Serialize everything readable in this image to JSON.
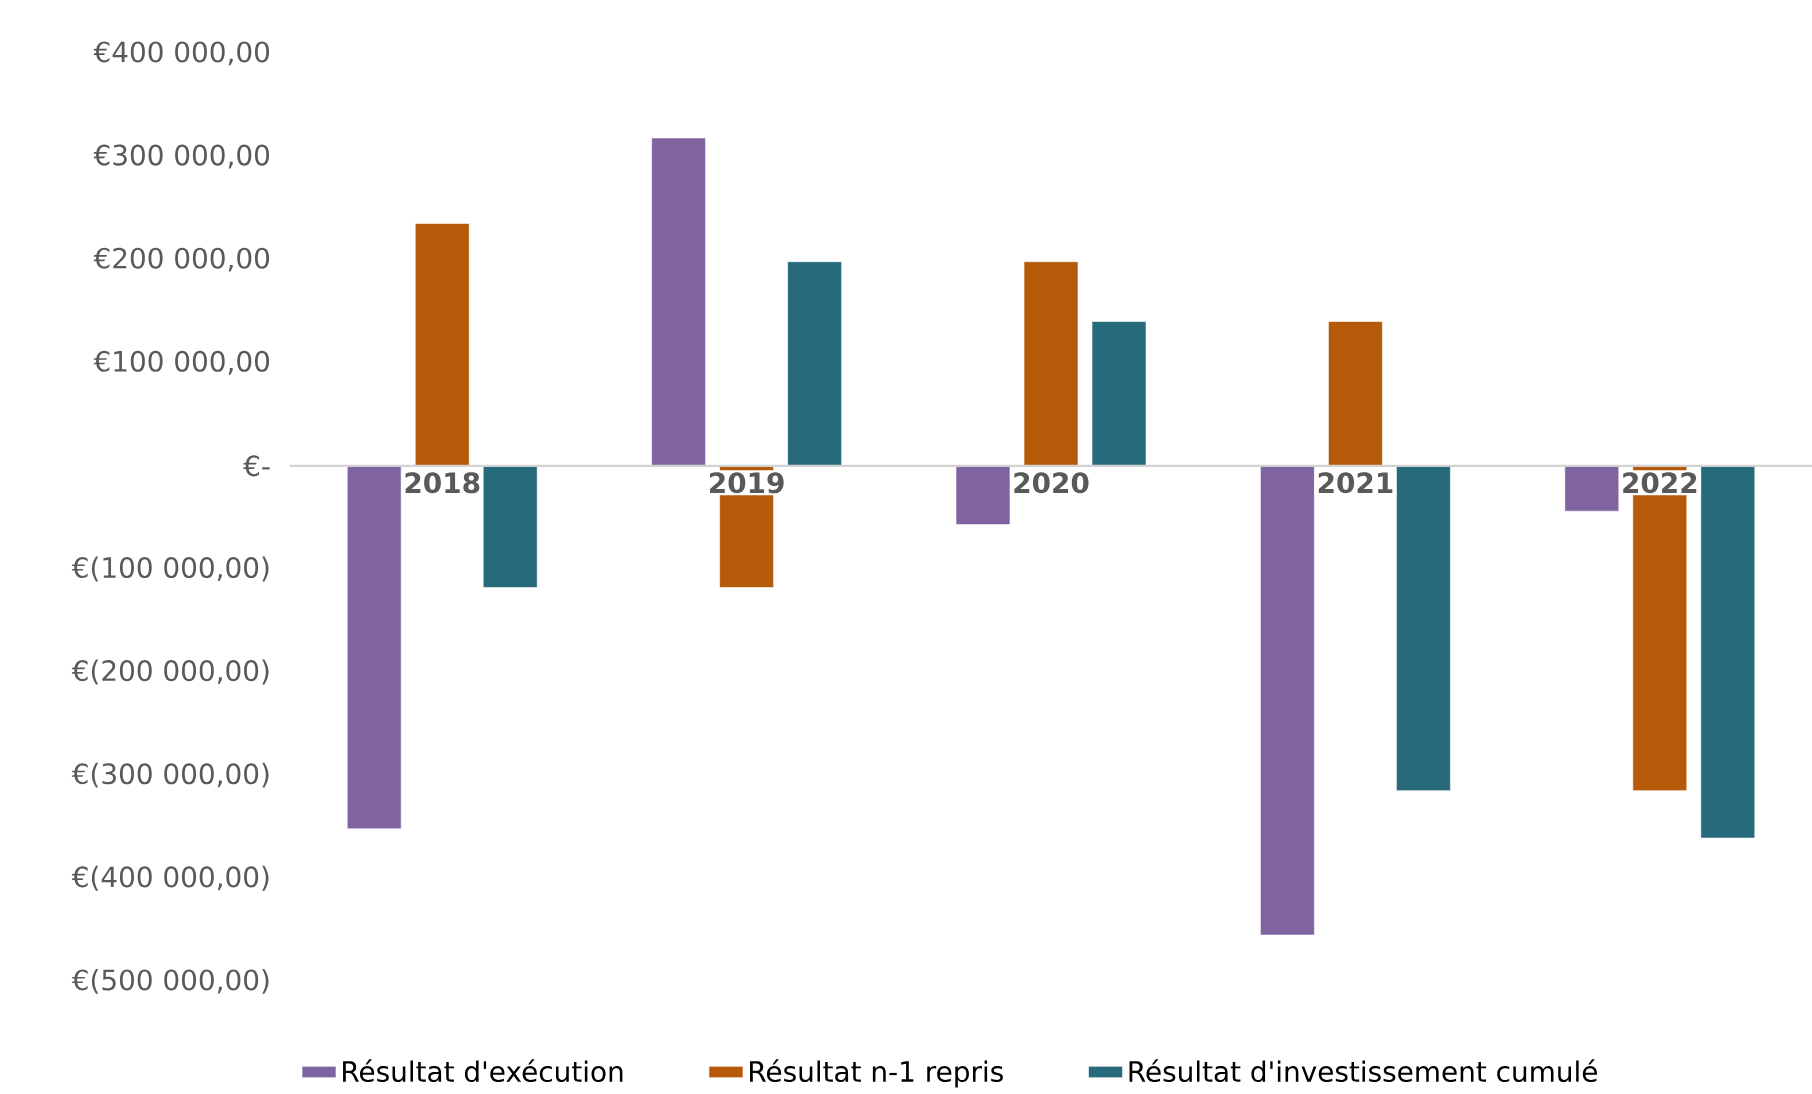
{
  "chart_data": {
    "type": "bar",
    "categories": [
      "2018",
      "2019",
      "2020",
      "2021",
      "2022"
    ],
    "series": [
      {
        "name": "Résultat d'exécution",
        "color": "#8064a2",
        "values": [
          -352000,
          318000,
          -57000,
          -455000,
          -44000
        ]
      },
      {
        "name": "Résultat n-1 repris",
        "color": "#b55a09",
        "values": [
          235000,
          -118000,
          198000,
          140000,
          -315000
        ]
      },
      {
        "name": "Résultat d'investissement cumulé",
        "color": "#276a7c",
        "values": [
          -118000,
          198000,
          140000,
          -315000,
          -361000
        ]
      }
    ],
    "ylim": [
      -500000,
      400000
    ],
    "yticks": [
      {
        "value": 400000,
        "label": "€400 000,00"
      },
      {
        "value": 300000,
        "label": "€300 000,00"
      },
      {
        "value": 200000,
        "label": "€200 000,00"
      },
      {
        "value": 100000,
        "label": "€100 000,00"
      },
      {
        "value": 0,
        "label": "€-"
      },
      {
        "value": -100000,
        "label": "€(100 000,00)"
      },
      {
        "value": -200000,
        "label": "€(200 000,00)"
      },
      {
        "value": -300000,
        "label": "€(300 000,00)"
      },
      {
        "value": -400000,
        "label": "€(400 000,00)"
      },
      {
        "value": -500000,
        "label": "€(500 000,00)"
      }
    ],
    "legend": "bottom"
  }
}
